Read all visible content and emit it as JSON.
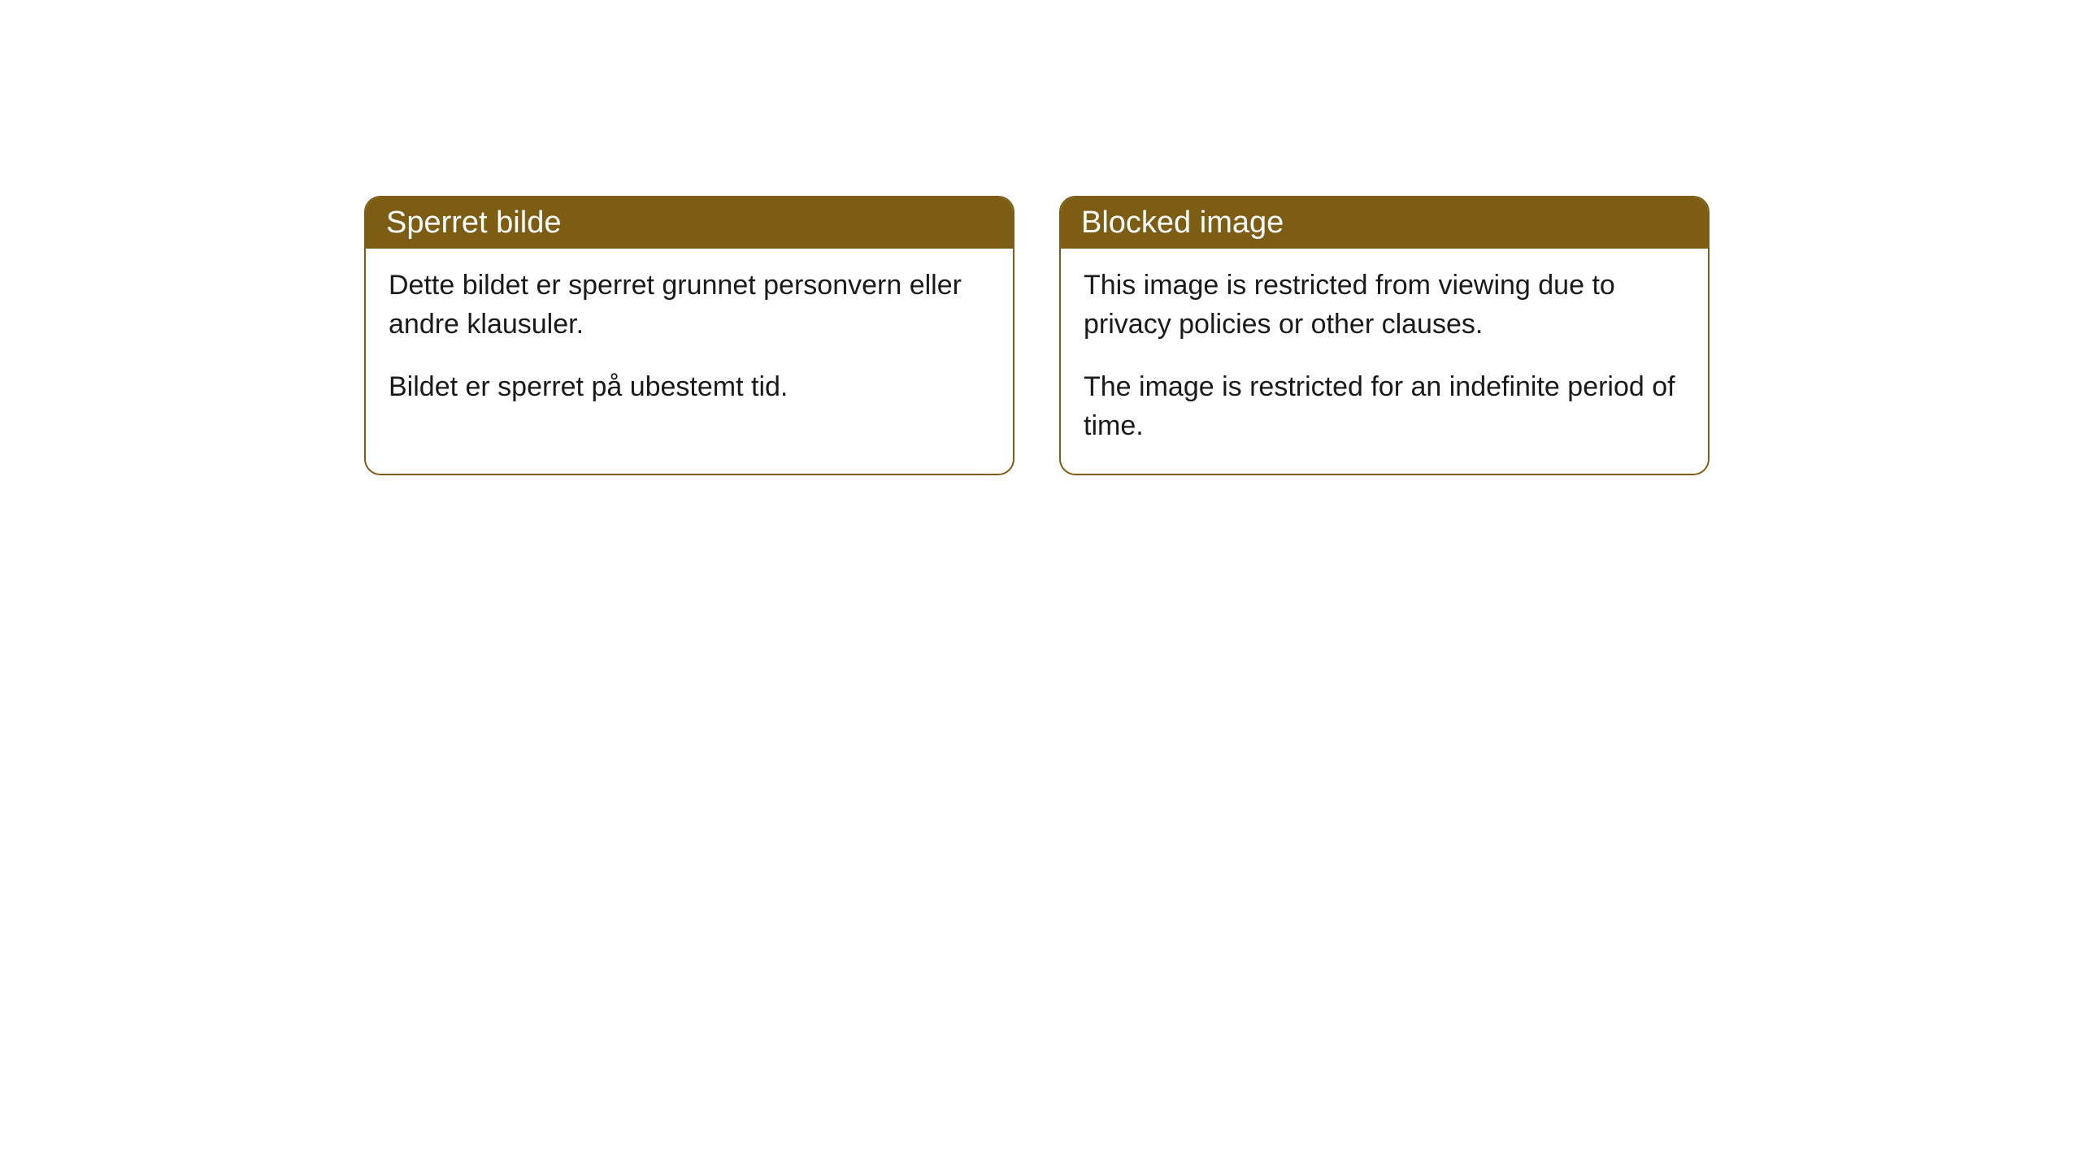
{
  "page": {
    "background_color": "#ffffff"
  },
  "cards": {
    "left": {
      "header": "Sperret bilde",
      "paragraph1": "Dette bildet er sperret grunnet personvern eller andre klausuler.",
      "paragraph2": "Bildet er sperret på ubestemt tid."
    },
    "right": {
      "header": "Blocked image",
      "paragraph1": "This image is restricted from viewing due to privacy policies or other clauses.",
      "paragraph2": "The image is restricted for an indefinite period of time."
    }
  },
  "style": {
    "header_background": "#7d5d13",
    "header_text_color": "#ffffff",
    "border_color": "#7d5d13",
    "body_text_color": "#1a1a1a",
    "card_background": "#ffffff",
    "border_radius": 20,
    "header_fontsize": 38,
    "body_fontsize": 34
  }
}
